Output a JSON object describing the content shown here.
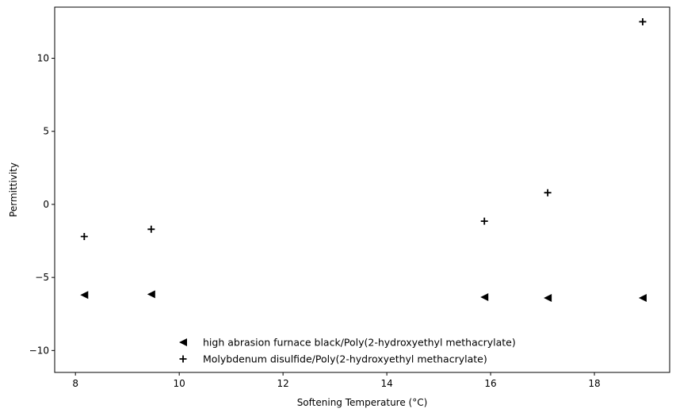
{
  "chart_data": {
    "type": "scatter",
    "title": "",
    "xlabel": "Softening Temperature (°C)",
    "ylabel": "Permittivity",
    "xlim": [
      7.6,
      19.45
    ],
    "ylim": [
      -11.5,
      13.5
    ],
    "xticks": [
      8,
      10,
      12,
      14,
      16,
      18
    ],
    "xtick_labels": [
      "8",
      "10",
      "12",
      "14",
      "16",
      "18"
    ],
    "yticks": [
      -10,
      -5,
      0,
      5,
      10
    ],
    "ytick_labels": [
      "−10",
      "−5",
      "0",
      "5",
      "10"
    ],
    "grid": false,
    "legend_position": "lower center",
    "series": [
      {
        "name": "high abrasion furnace black/Poly(2-hydroxyethyl methacrylate)",
        "marker": "triangle-left",
        "color": "#000000",
        "x": [
          8.17,
          9.46,
          15.88,
          17.1,
          18.93
        ],
        "y": [
          -6.2,
          -6.15,
          -6.35,
          -6.4,
          -6.4
        ]
      },
      {
        "name": "Molybdenum disulfide/Poly(2-hydroxyethyl methacrylate)",
        "marker": "plus",
        "color": "#000000",
        "x": [
          8.17,
          9.46,
          15.88,
          17.1,
          18.93
        ],
        "y": [
          -2.2,
          -1.7,
          -1.15,
          0.8,
          12.5
        ]
      }
    ]
  }
}
